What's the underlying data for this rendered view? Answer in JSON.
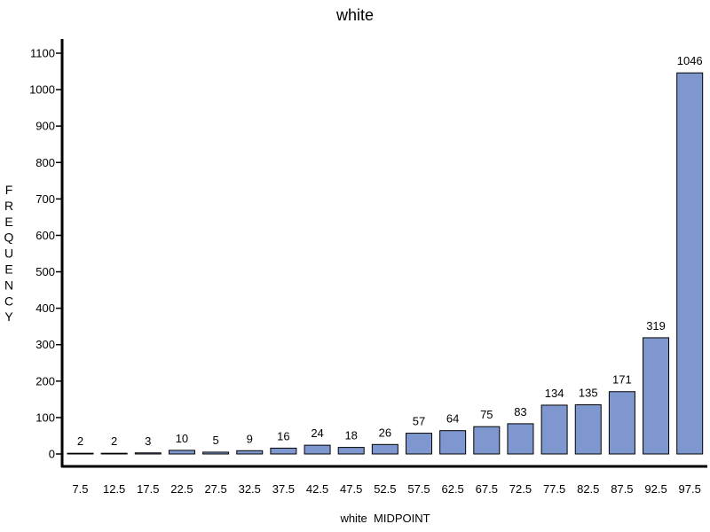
{
  "chart_data": {
    "type": "bar",
    "title": "white",
    "xlabel": "white  MIDPOINT",
    "ylabel": "FREQUENCY",
    "categories": [
      "7.5",
      "12.5",
      "17.5",
      "22.5",
      "27.5",
      "32.5",
      "37.5",
      "42.5",
      "47.5",
      "52.5",
      "57.5",
      "62.5",
      "67.5",
      "72.5",
      "77.5",
      "82.5",
      "87.5",
      "92.5",
      "97.5"
    ],
    "values": [
      2,
      2,
      3,
      10,
      5,
      9,
      16,
      24,
      18,
      26,
      57,
      64,
      75,
      83,
      134,
      135,
      171,
      319,
      1046
    ],
    "data_labels": [
      "2",
      "2",
      "3",
      "10",
      "5",
      "9",
      "16",
      "24",
      "18",
      "26",
      "57",
      "64",
      "75",
      "83",
      "134",
      "135",
      "171",
      "319",
      "1046"
    ],
    "yticks": [
      0,
      100,
      200,
      300,
      400,
      500,
      600,
      700,
      800,
      900,
      1000,
      1100
    ],
    "ytick_labels": [
      "0",
      "100",
      "200",
      "300",
      "400",
      "500",
      "600",
      "700",
      "800",
      "900",
      "1000",
      "1100"
    ],
    "ylim": [
      0,
      1130
    ],
    "grid": false,
    "legend": "none",
    "bar_color": "#7f97cf",
    "bar_edge_color": "#000000"
  }
}
